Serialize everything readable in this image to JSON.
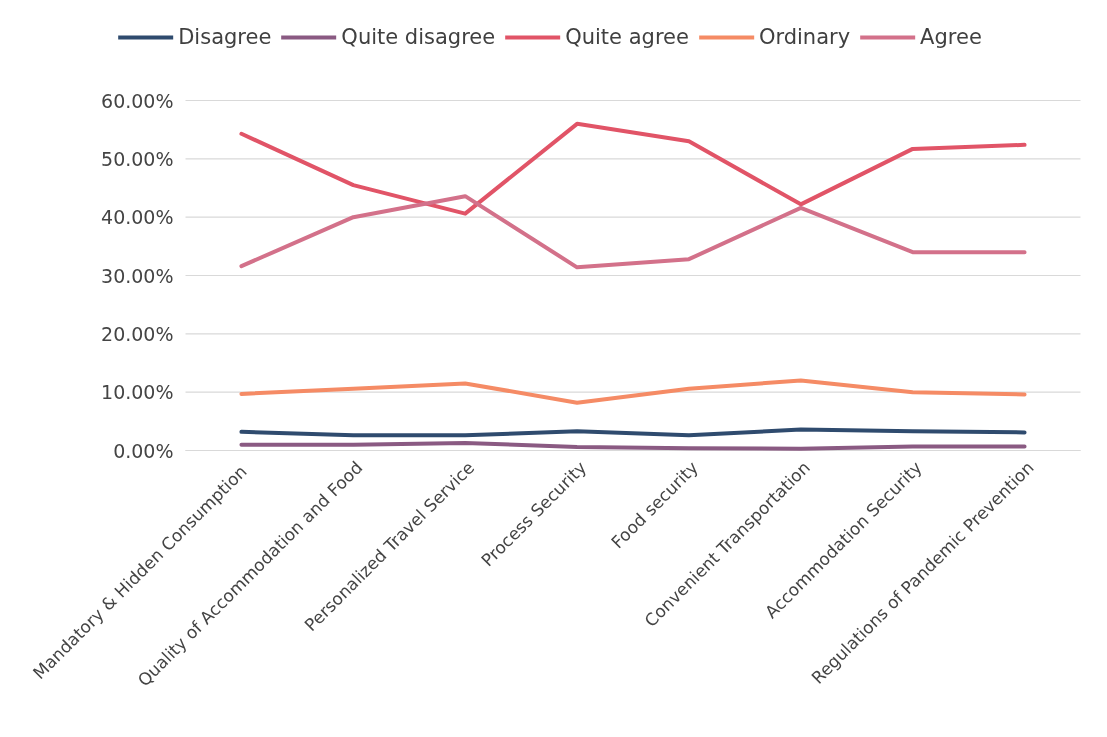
{
  "chart_data": {
    "type": "line",
    "categories": [
      "Mandatory  & Hidden Consumption",
      "Quality of Accommodation and Food",
      "Personalized Travel Service",
      "Process Security",
      "Food security",
      "Convenient Transportation",
      "Accommodation Security",
      "Regulations of Pandemic Prevention"
    ],
    "series": [
      {
        "name": "Disagree",
        "color": "#2f4b6e",
        "values": [
          3.2,
          2.6,
          2.6,
          3.3,
          2.6,
          3.6,
          3.3,
          3.1
        ]
      },
      {
        "name": "Quite disagree",
        "color": "#8a5a82",
        "values": [
          1.0,
          1.0,
          1.3,
          0.6,
          0.4,
          0.3,
          0.7,
          0.7
        ]
      },
      {
        "name": "Quite agree",
        "color": "#e15467",
        "values": [
          54.3,
          45.5,
          40.6,
          56.0,
          53.0,
          42.2,
          51.7,
          52.4
        ]
      },
      {
        "name": "Ordinary",
        "color": "#f58b65",
        "values": [
          9.7,
          10.6,
          11.5,
          8.2,
          10.6,
          12.0,
          10.0,
          9.6
        ]
      },
      {
        "name": "Agree",
        "color": "#d3718a",
        "values": [
          31.6,
          40.0,
          43.6,
          31.4,
          32.8,
          41.6,
          34.0,
          34.0
        ]
      }
    ],
    "ylim": [
      0,
      60
    ],
    "yticks": [
      {
        "value": 0,
        "label": "0.00%"
      },
      {
        "value": 10,
        "label": "10.00%"
      },
      {
        "value": 20,
        "label": "20.00%"
      },
      {
        "value": 30,
        "label": "30.00%"
      },
      {
        "value": 40,
        "label": "40.00%"
      },
      {
        "value": 50,
        "label": "50.00%"
      },
      {
        "value": 60,
        "label": "60.00%"
      }
    ],
    "grid": "y",
    "legend": "top",
    "marker": "none",
    "line_style": "solid"
  }
}
